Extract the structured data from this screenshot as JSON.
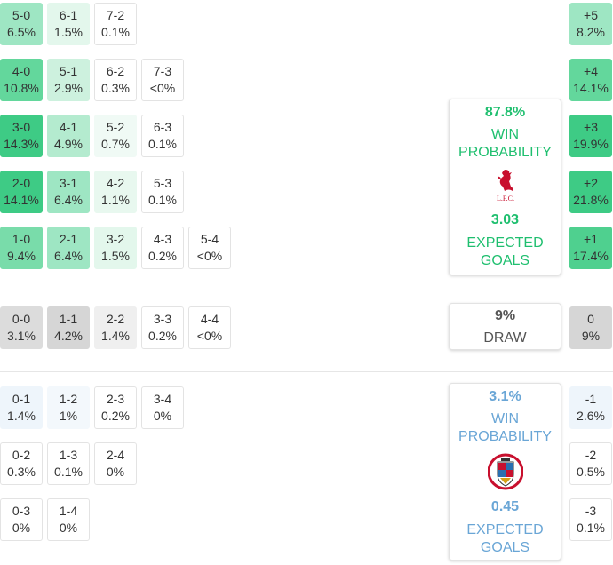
{
  "colors": {
    "home_accent": "#1fbf6f",
    "away_accent": "#6aa6d6",
    "draw_text": "#555555"
  },
  "home_grid": [
    {
      "score": "5-0",
      "pct": "6.5%",
      "bg": "#9ee6c3"
    },
    {
      "score": "6-1",
      "pct": "1.5%",
      "bg": "#e3f7ec"
    },
    {
      "score": "7-2",
      "pct": "0.1%",
      "bg": "#ffffff"
    },
    {
      "score": "4-0",
      "pct": "10.8%",
      "bg": "#63d79c"
    },
    {
      "score": "5-1",
      "pct": "2.9%",
      "bg": "#cdf1de"
    },
    {
      "score": "6-2",
      "pct": "0.3%",
      "bg": "#ffffff"
    },
    {
      "score": "7-3",
      "pct": "<0%",
      "bg": "#ffffff"
    },
    {
      "score": "3-0",
      "pct": "14.3%",
      "bg": "#3ecb85"
    },
    {
      "score": "4-1",
      "pct": "4.9%",
      "bg": "#b4ebcf"
    },
    {
      "score": "5-2",
      "pct": "0.7%",
      "bg": "#f0faf5"
    },
    {
      "score": "6-3",
      "pct": "0.1%",
      "bg": "#ffffff"
    },
    {
      "score": "2-0",
      "pct": "14.1%",
      "bg": "#3ecb85"
    },
    {
      "score": "3-1",
      "pct": "6.4%",
      "bg": "#9ee6c3"
    },
    {
      "score": "4-2",
      "pct": "1.1%",
      "bg": "#e8f8ef"
    },
    {
      "score": "5-3",
      "pct": "0.1%",
      "bg": "#ffffff"
    },
    {
      "score": "1-0",
      "pct": "9.4%",
      "bg": "#79dcaa"
    },
    {
      "score": "2-1",
      "pct": "6.4%",
      "bg": "#9ee6c3"
    },
    {
      "score": "3-2",
      "pct": "1.5%",
      "bg": "#e3f7ec"
    },
    {
      "score": "4-3",
      "pct": "0.2%",
      "bg": "#ffffff"
    },
    {
      "score": "5-4",
      "pct": "<0%",
      "bg": "#ffffff"
    }
  ],
  "draw_grid": [
    {
      "score": "0-0",
      "pct": "3.1%",
      "bg": "#dcdcdc"
    },
    {
      "score": "1-1",
      "pct": "4.2%",
      "bg": "#d6d6d6"
    },
    {
      "score": "2-2",
      "pct": "1.4%",
      "bg": "#efefef"
    },
    {
      "score": "3-3",
      "pct": "0.2%",
      "bg": "#ffffff"
    },
    {
      "score": "4-4",
      "pct": "<0%",
      "bg": "#ffffff"
    }
  ],
  "away_grid": [
    {
      "score": "0-1",
      "pct": "1.4%",
      "bg": "#eef5fb"
    },
    {
      "score": "1-2",
      "pct": "1%",
      "bg": "#f3f8fc"
    },
    {
      "score": "2-3",
      "pct": "0.2%",
      "bg": "#ffffff"
    },
    {
      "score": "3-4",
      "pct": "0%",
      "bg": "#ffffff"
    },
    {
      "score": "0-2",
      "pct": "0.3%",
      "bg": "#ffffff"
    },
    {
      "score": "1-3",
      "pct": "0.1%",
      "bg": "#ffffff"
    },
    {
      "score": "2-4",
      "pct": "0%",
      "bg": "#ffffff"
    },
    {
      "score": "0-3",
      "pct": "0%",
      "bg": "#ffffff"
    },
    {
      "score": "1-4",
      "pct": "0%",
      "bg": "#ffffff"
    }
  ],
  "home_margins": [
    {
      "margin": "+5",
      "pct": "8.2%",
      "bg": "#9ee6c3"
    },
    {
      "margin": "+4",
      "pct": "14.1%",
      "bg": "#63d79c"
    },
    {
      "margin": "+3",
      "pct": "19.9%",
      "bg": "#3ecb85"
    },
    {
      "margin": "+2",
      "pct": "21.8%",
      "bg": "#3ecb85"
    },
    {
      "margin": "+1",
      "pct": "17.4%",
      "bg": "#4fd08f"
    }
  ],
  "draw_margin": {
    "margin": "0",
    "pct": "9%",
    "bg": "#d6d6d6"
  },
  "away_margins": [
    {
      "margin": "-1",
      "pct": "2.6%",
      "bg": "#eef5fb"
    },
    {
      "margin": "-2",
      "pct": "0.5%",
      "bg": "#ffffff"
    },
    {
      "margin": "-3",
      "pct": "0.1%",
      "bg": "#ffffff"
    }
  ],
  "home_card": {
    "win_pct": "87.8%",
    "win_label_1": "WIN",
    "win_label_2": "PROBABILITY",
    "crest_icon": "liverpool-crest-icon",
    "crest_text": "L.F.C.",
    "xg": "3.03",
    "xg_label_1": "EXPECTED",
    "xg_label_2": "GOALS"
  },
  "draw_card": {
    "pct": "9%",
    "label": "DRAW"
  },
  "away_card": {
    "win_pct": "3.1%",
    "win_label_1": "WIN",
    "win_label_2": "PROBABILITY",
    "crest_icon": "barnsley-crest-icon",
    "xg": "0.45",
    "xg_label_1": "EXPECTED",
    "xg_label_2": "GOALS"
  }
}
